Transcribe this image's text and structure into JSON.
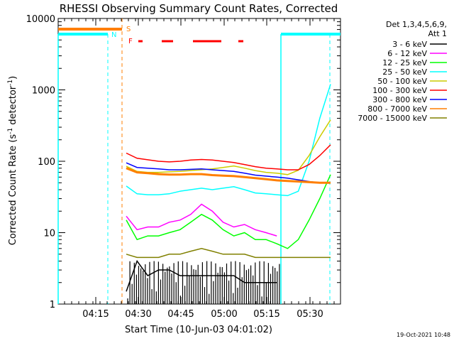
{
  "chart_data": {
    "type": "line",
    "title": "RHESSI Observing Summary Count Rates, Corrected",
    "xlabel": "Start Time (10-Jun-03 04:01:02)",
    "ylabel": "Corrected Count Rate (s",
    "ylabel_sup": "-1",
    "ylabel_tail": " detector",
    "ylabel_sup2": "-1",
    "ylabel_close": ")",
    "y_scale": "log",
    "ylim": [
      1,
      10000
    ],
    "xlim_minutes": [
      "04:01",
      "05:37"
    ],
    "x_ticks": [
      "04:15",
      "04:30",
      "04:45",
      "05:00",
      "05:15",
      "05:30"
    ],
    "y_ticks": [
      "1",
      "10",
      "100",
      "1000",
      "10000"
    ],
    "legend_position": "top-right",
    "legend_header": [
      "Det 1,3,4,5,6,9,",
      "Att 1"
    ],
    "timestamp": "19-Oct-2021 10:48",
    "flags": [
      {
        "label": "S",
        "color": "#ff7f00"
      },
      {
        "label": "N",
        "color": "#00ffff"
      },
      {
        "label": "F",
        "color": "#ff0000"
      }
    ],
    "series": [
      {
        "name": "3 - 6 keV",
        "color": "#000000",
        "values": [
          [
            0,
            1.5
          ],
          [
            1,
            4
          ],
          [
            2,
            2.5
          ],
          [
            3,
            3
          ],
          [
            4,
            3
          ],
          [
            5,
            2.5
          ],
          [
            6,
            2.5
          ],
          [
            7,
            2.5
          ],
          [
            8,
            2.5
          ],
          [
            9,
            2.5
          ],
          [
            10,
            2.5
          ],
          [
            11,
            2
          ],
          [
            12,
            2
          ],
          [
            13,
            2
          ],
          [
            14,
            2
          ]
        ]
      },
      {
        "name": "6 - 12 keV",
        "color": "#ff00ff",
        "values": [
          [
            0,
            17
          ],
          [
            1,
            11
          ],
          [
            2,
            12
          ],
          [
            3,
            12
          ],
          [
            4,
            14
          ],
          [
            5,
            15
          ],
          [
            6,
            18
          ],
          [
            7,
            25
          ],
          [
            8,
            20
          ],
          [
            9,
            14
          ],
          [
            10,
            12
          ],
          [
            11,
            13
          ],
          [
            12,
            11
          ],
          [
            13,
            10
          ],
          [
            14,
            9
          ]
        ]
      },
      {
        "name": "12 - 25 keV",
        "color": "#00ff00",
        "values": [
          [
            0,
            15
          ],
          [
            1,
            8
          ],
          [
            2,
            9
          ],
          [
            3,
            9
          ],
          [
            4,
            10
          ],
          [
            5,
            11
          ],
          [
            6,
            14
          ],
          [
            7,
            18
          ],
          [
            8,
            15
          ],
          [
            9,
            11
          ],
          [
            10,
            9
          ],
          [
            11,
            10
          ],
          [
            12,
            8
          ],
          [
            13,
            8
          ],
          [
            14,
            7
          ],
          [
            15,
            6
          ],
          [
            16,
            8
          ],
          [
            17,
            15
          ],
          [
            18,
            30
          ],
          [
            19,
            65
          ]
        ]
      },
      {
        "name": "25 - 50 keV",
        "color": "#00ffff",
        "values": [
          [
            0,
            45
          ],
          [
            1,
            35
          ],
          [
            2,
            34
          ],
          [
            3,
            34
          ],
          [
            4,
            35
          ],
          [
            5,
            38
          ],
          [
            6,
            40
          ],
          [
            7,
            42
          ],
          [
            8,
            40
          ],
          [
            9,
            42
          ],
          [
            10,
            44
          ],
          [
            11,
            40
          ],
          [
            12,
            36
          ],
          [
            13,
            35
          ],
          [
            14,
            34
          ],
          [
            15,
            33
          ],
          [
            16,
            38
          ],
          [
            17,
            100
          ],
          [
            18,
            400
          ],
          [
            19,
            1200
          ]
        ]
      },
      {
        "name": "50 - 100 keV",
        "color": "#cccc00",
        "values": [
          [
            0,
            85
          ],
          [
            1,
            72
          ],
          [
            2,
            70
          ],
          [
            3,
            70
          ],
          [
            4,
            71
          ],
          [
            5,
            72
          ],
          [
            6,
            74
          ],
          [
            7,
            76
          ],
          [
            8,
            78
          ],
          [
            9,
            82
          ],
          [
            10,
            86
          ],
          [
            11,
            80
          ],
          [
            12,
            74
          ],
          [
            13,
            70
          ],
          [
            14,
            68
          ],
          [
            15,
            65
          ],
          [
            16,
            75
          ],
          [
            17,
            120
          ],
          [
            18,
            220
          ],
          [
            19,
            380
          ]
        ]
      },
      {
        "name": "100 - 300 keV",
        "color": "#ff0000",
        "values": [
          [
            0,
            130
          ],
          [
            1,
            110
          ],
          [
            2,
            105
          ],
          [
            3,
            100
          ],
          [
            4,
            98
          ],
          [
            5,
            100
          ],
          [
            6,
            104
          ],
          [
            7,
            106
          ],
          [
            8,
            104
          ],
          [
            9,
            100
          ],
          [
            10,
            96
          ],
          [
            11,
            90
          ],
          [
            12,
            84
          ],
          [
            13,
            80
          ],
          [
            14,
            78
          ],
          [
            15,
            76
          ],
          [
            16,
            76
          ],
          [
            17,
            90
          ],
          [
            18,
            120
          ],
          [
            19,
            170
          ]
        ]
      },
      {
        "name": "300 - 800 keV",
        "color": "#0000ff",
        "values": [
          [
            0,
            95
          ],
          [
            1,
            82
          ],
          [
            2,
            80
          ],
          [
            3,
            78
          ],
          [
            4,
            76
          ],
          [
            5,
            76
          ],
          [
            6,
            77
          ],
          [
            7,
            78
          ],
          [
            8,
            76
          ],
          [
            9,
            74
          ],
          [
            10,
            72
          ],
          [
            11,
            68
          ],
          [
            12,
            64
          ],
          [
            13,
            62
          ],
          [
            14,
            60
          ],
          [
            15,
            58
          ],
          [
            16,
            55
          ],
          [
            17,
            52
          ],
          [
            18,
            50
          ],
          [
            19,
            50
          ]
        ]
      },
      {
        "name": "800 - 7000 keV",
        "color": "#ff7f00",
        "values": [
          [
            0,
            80
          ],
          [
            1,
            70
          ],
          [
            2,
            68
          ],
          [
            3,
            66
          ],
          [
            4,
            65
          ],
          [
            5,
            65
          ],
          [
            6,
            66
          ],
          [
            7,
            66
          ],
          [
            8,
            64
          ],
          [
            9,
            63
          ],
          [
            10,
            62
          ],
          [
            11,
            60
          ],
          [
            12,
            58
          ],
          [
            13,
            56
          ],
          [
            14,
            54
          ],
          [
            15,
            53
          ],
          [
            16,
            52
          ],
          [
            17,
            51
          ],
          [
            18,
            50
          ],
          [
            19,
            50
          ]
        ]
      },
      {
        "name": "7000 - 15000 keV",
        "color": "#808000",
        "values": [
          [
            0,
            5
          ],
          [
            1,
            4.5
          ],
          [
            2,
            4.5
          ],
          [
            3,
            4.5
          ],
          [
            4,
            5
          ],
          [
            5,
            5
          ],
          [
            6,
            5.5
          ],
          [
            7,
            6
          ],
          [
            8,
            5.5
          ],
          [
            9,
            5
          ],
          [
            10,
            5
          ],
          [
            11,
            5
          ],
          [
            12,
            4.5
          ],
          [
            13,
            4.5
          ],
          [
            14,
            4.5
          ],
          [
            15,
            4.5
          ],
          [
            16,
            4.5
          ],
          [
            17,
            4.5
          ],
          [
            18,
            4.5
          ],
          [
            19,
            4.5
          ]
        ]
      }
    ]
  }
}
